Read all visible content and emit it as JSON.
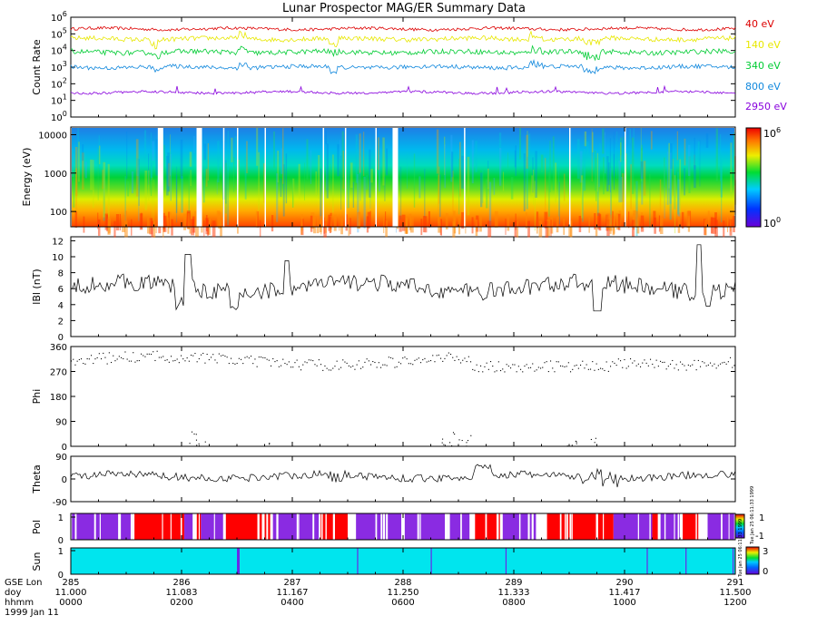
{
  "title": "Lunar Prospector MAG/ER Summary Data",
  "colors": {
    "axis": "#000000",
    "ch40": "#dd0000",
    "ch140": "#e8e800",
    "ch340": "#00cc33",
    "ch800": "#1188dd",
    "ch2950": "#8800dd",
    "pol_pos": "#ff0000",
    "pol_neg": "#8a2be2",
    "sun": "#00e5ee",
    "sun_line": "#6a28e8"
  },
  "chart_data": [
    {
      "id": "count_rate",
      "type": "line",
      "ylabel": "Count Rate",
      "yscale": "log",
      "ylim": [
        1,
        1000000
      ],
      "ytick_exponents": [
        "0",
        "1",
        "2",
        "3",
        "4",
        "5",
        "6"
      ],
      "series": [
        {
          "name": "40 eV",
          "level": 200000
        },
        {
          "name": "140 eV",
          "level": 50000
        },
        {
          "name": "340 eV",
          "level": 8000
        },
        {
          "name": "800 eV",
          "level": 1000
        },
        {
          "name": "2950 eV",
          "level": 30
        }
      ]
    },
    {
      "id": "spectrogram",
      "type": "heatmap",
      "ylabel": "Energy (eV)",
      "yscale": "log",
      "ylim": [
        40,
        15000
      ],
      "yticks": [
        {
          "value": 10000,
          "label": "10000"
        },
        {
          "value": 1000,
          "label": "1000"
        },
        {
          "value": 100,
          "label": "100"
        }
      ],
      "colorbar": {
        "min_label": "10",
        "min_exp": "0",
        "max_label": "10",
        "max_exp": "6"
      },
      "data_gaps_hours": [
        1.62,
        2.32,
        5.86
      ]
    },
    {
      "id": "btotal",
      "type": "line",
      "ylabel": "lBl (nT)",
      "ylim": [
        0,
        12.5
      ],
      "yticks": [
        "0",
        "2",
        "4",
        "6",
        "8",
        "10",
        "12"
      ]
    },
    {
      "id": "phi",
      "type": "scatter",
      "ylabel": "Phi",
      "ylim": [
        0,
        360
      ],
      "yticks": [
        "0",
        "90",
        "180",
        "270",
        "360"
      ]
    },
    {
      "id": "theta",
      "type": "line",
      "ylabel": "Theta",
      "ylim": [
        -90,
        90
      ],
      "yticks": [
        "-90",
        "0",
        "90"
      ]
    },
    {
      "id": "polarity",
      "type": "heatmap",
      "ylabel": "Pol",
      "yticks": [
        "0",
        "1"
      ],
      "colorbar": {
        "min_label": "-1",
        "max_label": "1",
        "side_text": "Tue Jan 25 06:11:33 1999"
      }
    },
    {
      "id": "sun",
      "type": "heatmap",
      "ylabel": "Sun",
      "yticks": [
        "0",
        "1"
      ],
      "colorbar": {
        "min_label": "0",
        "max_label": "3",
        "side_text": "Tue Jan 25 06:11:33 1999"
      }
    }
  ],
  "time_axis": {
    "row_labels": [
      "GSE Lon",
      "doy",
      "hhmm"
    ],
    "date": "1999 Jan 11",
    "ticks": [
      {
        "lon": "285",
        "doy": "11.000",
        "hhmm": "0000"
      },
      {
        "lon": "286",
        "doy": "11.083",
        "hhmm": "0200"
      },
      {
        "lon": "287",
        "doy": "11.167",
        "hhmm": "0400"
      },
      {
        "lon": "288",
        "doy": "11.250",
        "hhmm": "0600"
      },
      {
        "lon": "289",
        "doy": "11.333",
        "hhmm": "0800"
      },
      {
        "lon": "290",
        "doy": "11.417",
        "hhmm": "1000"
      },
      {
        "lon": "291",
        "doy": "11.500",
        "hhmm": "1200"
      }
    ]
  }
}
